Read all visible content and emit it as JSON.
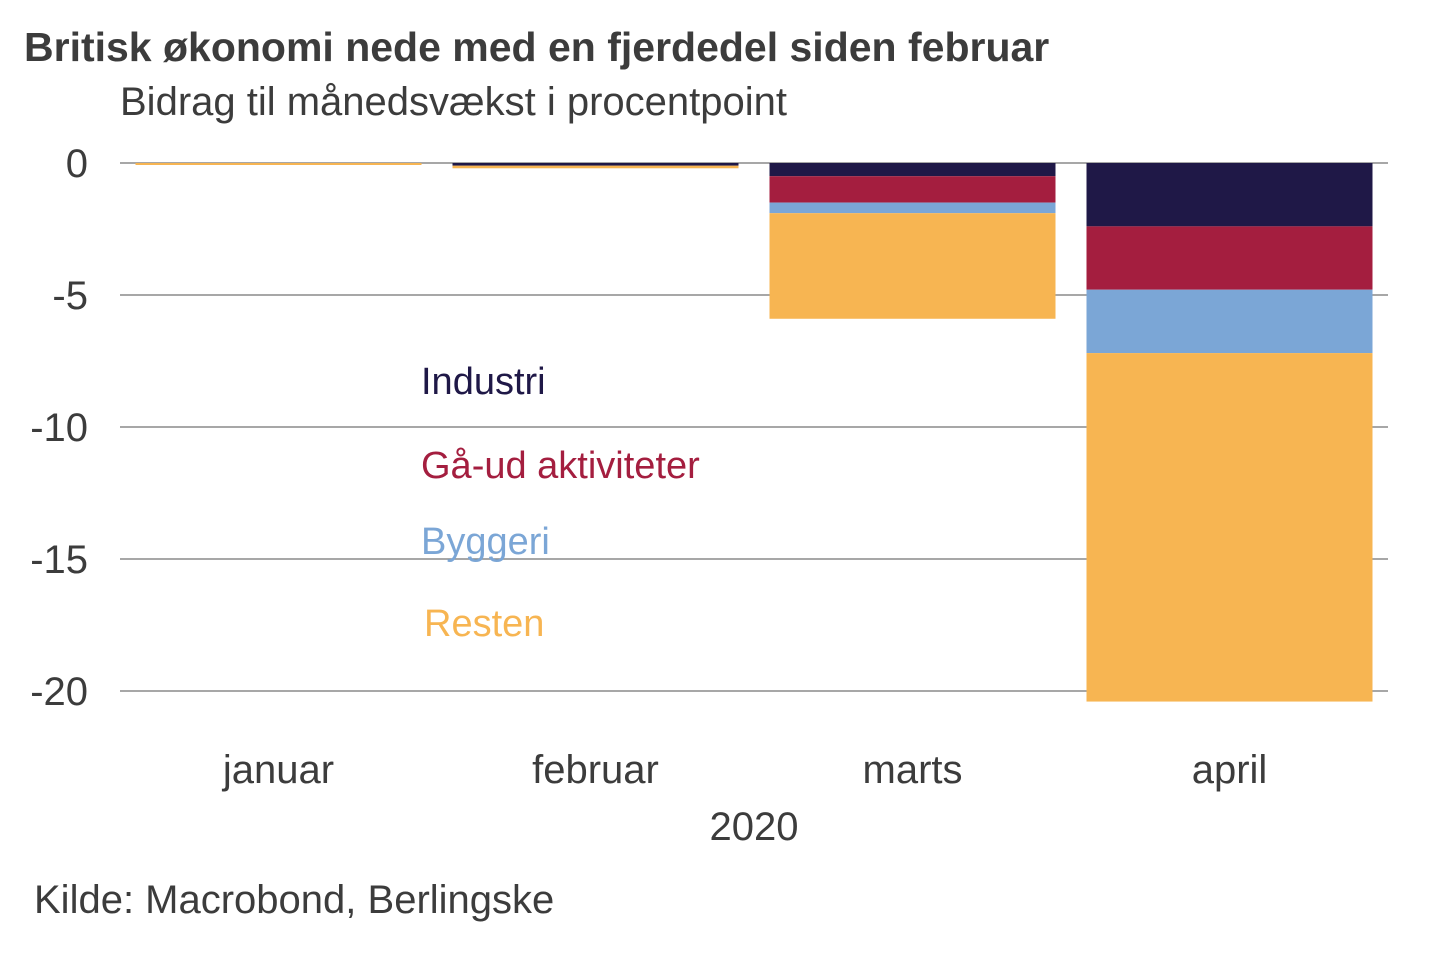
{
  "title": "Britisk økonomi nede med en fjerdedel siden februar",
  "subtitle": "Bidrag til månedsvækst i procentpoint",
  "source": "Kilde: Macrobond, Berlingske",
  "chart_data": {
    "type": "bar",
    "stacked": true,
    "categories": [
      "januar",
      "februar",
      "marts",
      "april"
    ],
    "year_label": "2020",
    "yticks": [
      0,
      -5,
      -10,
      -15,
      -20
    ],
    "ylim": [
      -20.5,
      0
    ],
    "grid": true,
    "series": [
      {
        "name": "Industri",
        "color": "#1f1847",
        "values": [
          0.0,
          -0.1,
          -0.5,
          -2.4
        ]
      },
      {
        "name": "Gå-ud aktiviteter",
        "color": "#a41e3f",
        "values": [
          0.0,
          0.0,
          -1.0,
          -2.4
        ]
      },
      {
        "name": "Byggeri",
        "color": "#7ba6d6",
        "values": [
          0.0,
          0.0,
          -0.4,
          -2.4
        ]
      },
      {
        "name": "Resten",
        "color": "#f7b552",
        "values": [
          -0.05,
          -0.1,
          -4.0,
          -13.2
        ]
      }
    ]
  }
}
